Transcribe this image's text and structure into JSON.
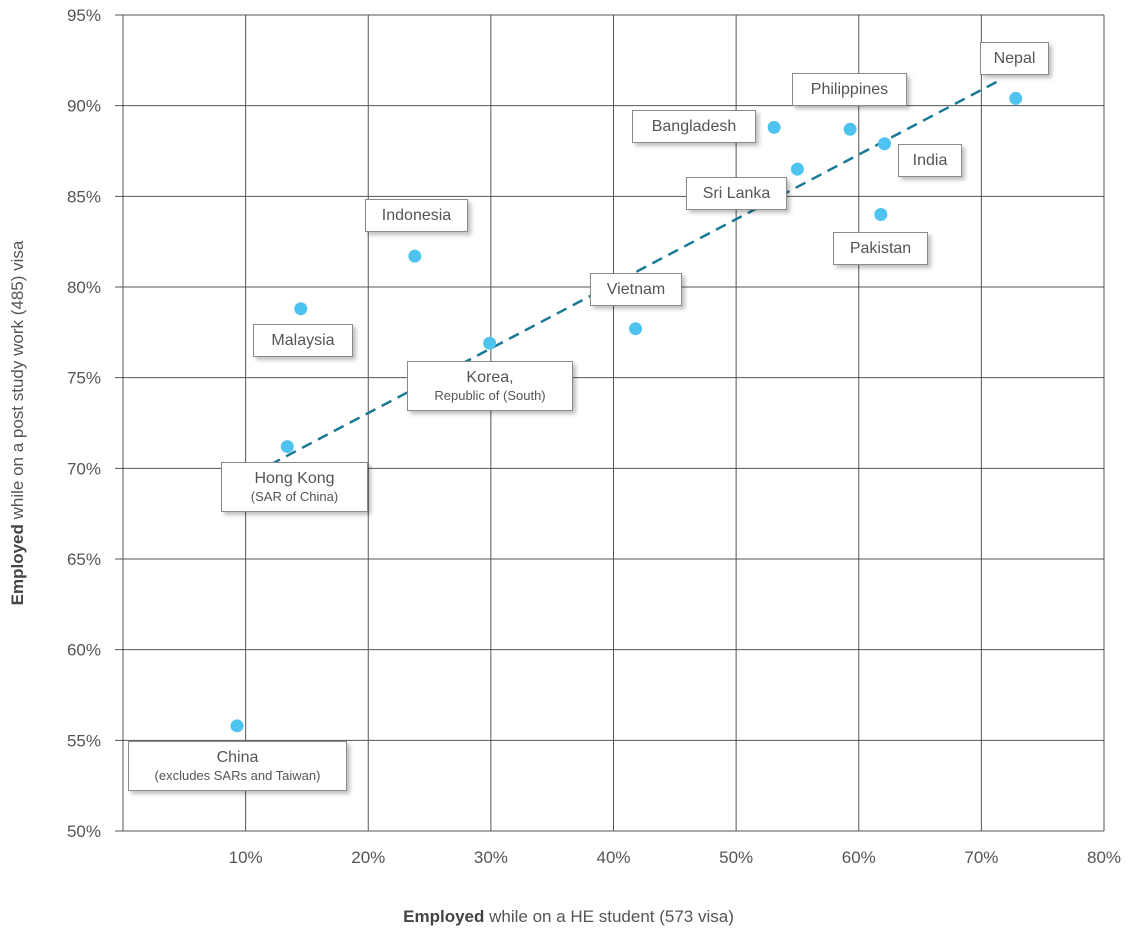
{
  "chart_data": {
    "type": "scatter",
    "xlabel_bold": "Employed",
    "xlabel_rest": " while on a HE student (573 visa)",
    "ylabel_bold": "Employed",
    "ylabel_rest": "  while on a post study work (485) visa",
    "xlim": [
      0,
      80
    ],
    "ylim": [
      50,
      95
    ],
    "x_ticks": [
      10,
      20,
      30,
      40,
      50,
      60,
      70,
      80
    ],
    "y_ticks": [
      50,
      55,
      60,
      65,
      70,
      75,
      80,
      85,
      90,
      95
    ],
    "x_tick_labels": [
      "10%",
      "20%",
      "30%",
      "40%",
      "50%",
      "60%",
      "70%",
      "80%"
    ],
    "y_tick_labels": [
      "50%",
      "55%",
      "60%",
      "65%",
      "70%",
      "75%",
      "80%",
      "85%",
      "90%",
      "95%"
    ],
    "grid": true,
    "point_color": "#4fc3f0",
    "trendline_color": "#1a7a96",
    "trendline": {
      "x": [
        12,
        71.5
      ],
      "y": [
        70.2,
        91.4
      ]
    },
    "points": [
      {
        "id": "china",
        "label": "China",
        "sublabel": "(excludes SARs and Taiwan)",
        "x": 9.3,
        "y": 55.8
      },
      {
        "id": "hong-kong",
        "label": "Hong Kong",
        "sublabel": "(SAR of China)",
        "x": 13.4,
        "y": 71.2
      },
      {
        "id": "malaysia",
        "label": "Malaysia",
        "sublabel": "",
        "x": 14.5,
        "y": 78.8
      },
      {
        "id": "indonesia",
        "label": "Indonesia",
        "sublabel": "",
        "x": 23.8,
        "y": 81.7
      },
      {
        "id": "korea",
        "label": "Korea,",
        "sublabel": "Republic of (South)",
        "x": 29.9,
        "y": 76.9
      },
      {
        "id": "vietnam",
        "label": "Vietnam",
        "sublabel": "",
        "x": 41.8,
        "y": 77.7
      },
      {
        "id": "bangladesh",
        "label": "Bangladesh",
        "sublabel": "",
        "x": 53.1,
        "y": 88.8
      },
      {
        "id": "sri-lanka",
        "label": "Sri Lanka",
        "sublabel": "",
        "x": 55.0,
        "y": 86.5
      },
      {
        "id": "philippines",
        "label": "Philippines",
        "sublabel": "",
        "x": 59.3,
        "y": 88.7
      },
      {
        "id": "india",
        "label": "India",
        "sublabel": "",
        "x": 62.1,
        "y": 87.9
      },
      {
        "id": "pakistan",
        "label": "Pakistan",
        "sublabel": "",
        "x": 61.8,
        "y": 84.0
      },
      {
        "id": "nepal",
        "label": "Nepal",
        "sublabel": "",
        "x": 72.8,
        "y": 90.4
      }
    ]
  }
}
